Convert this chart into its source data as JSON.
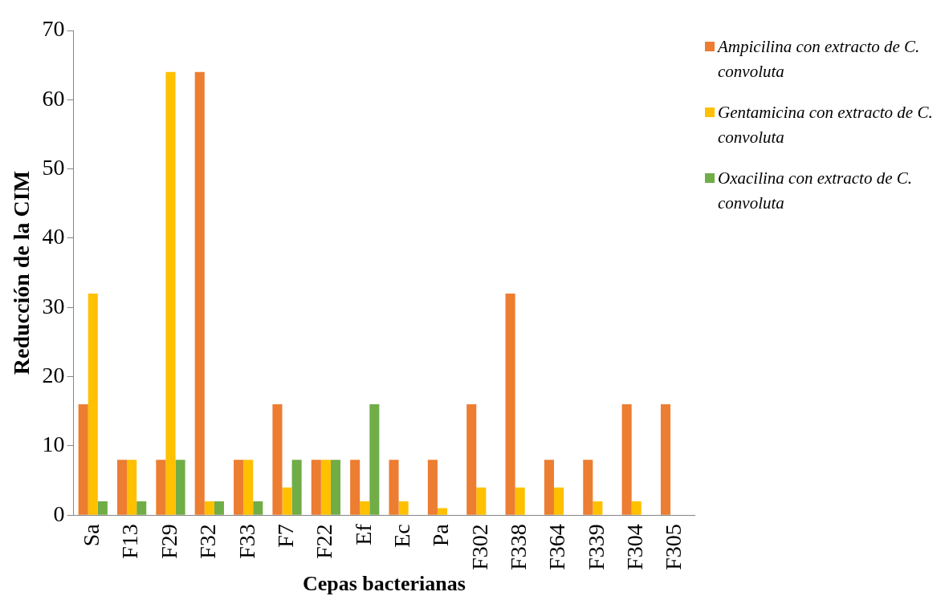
{
  "chart_data": {
    "type": "bar",
    "xlabel": "Cepas bacterianas",
    "ylabel": "Reducción de la CIM",
    "categories": [
      "Sa",
      "F13",
      "F29",
      "F32",
      "F33",
      "F7",
      "F22",
      "Ef",
      "Ec",
      "Pa",
      "F302",
      "F338",
      "F364",
      "F339",
      "F304",
      "F305"
    ],
    "series": [
      {
        "name": "Ampicilina con extracto de C. convoluta",
        "color": "#ed7d31",
        "values": [
          16,
          8,
          8,
          64,
          8,
          16,
          8,
          8,
          8,
          8,
          16,
          32,
          8,
          8,
          16,
          16
        ]
      },
      {
        "name": "Gentamicina con extracto de C. convoluta",
        "color": "#ffc000",
        "values": [
          32,
          8,
          64,
          2,
          8,
          4,
          8,
          2,
          2,
          1,
          4,
          4,
          4,
          2,
          2,
          null
        ]
      },
      {
        "name": "Oxacilina con extracto de C. convoluta",
        "color": "#70ad47",
        "values": [
          2,
          2,
          8,
          2,
          2,
          8,
          8,
          16,
          null,
          null,
          null,
          null,
          null,
          null,
          null,
          null
        ]
      }
    ],
    "ylim": [
      0,
      70
    ],
    "yticks": [
      0,
      10,
      20,
      30,
      40,
      50,
      60,
      70
    ],
    "grid": false,
    "legend": "top right"
  }
}
